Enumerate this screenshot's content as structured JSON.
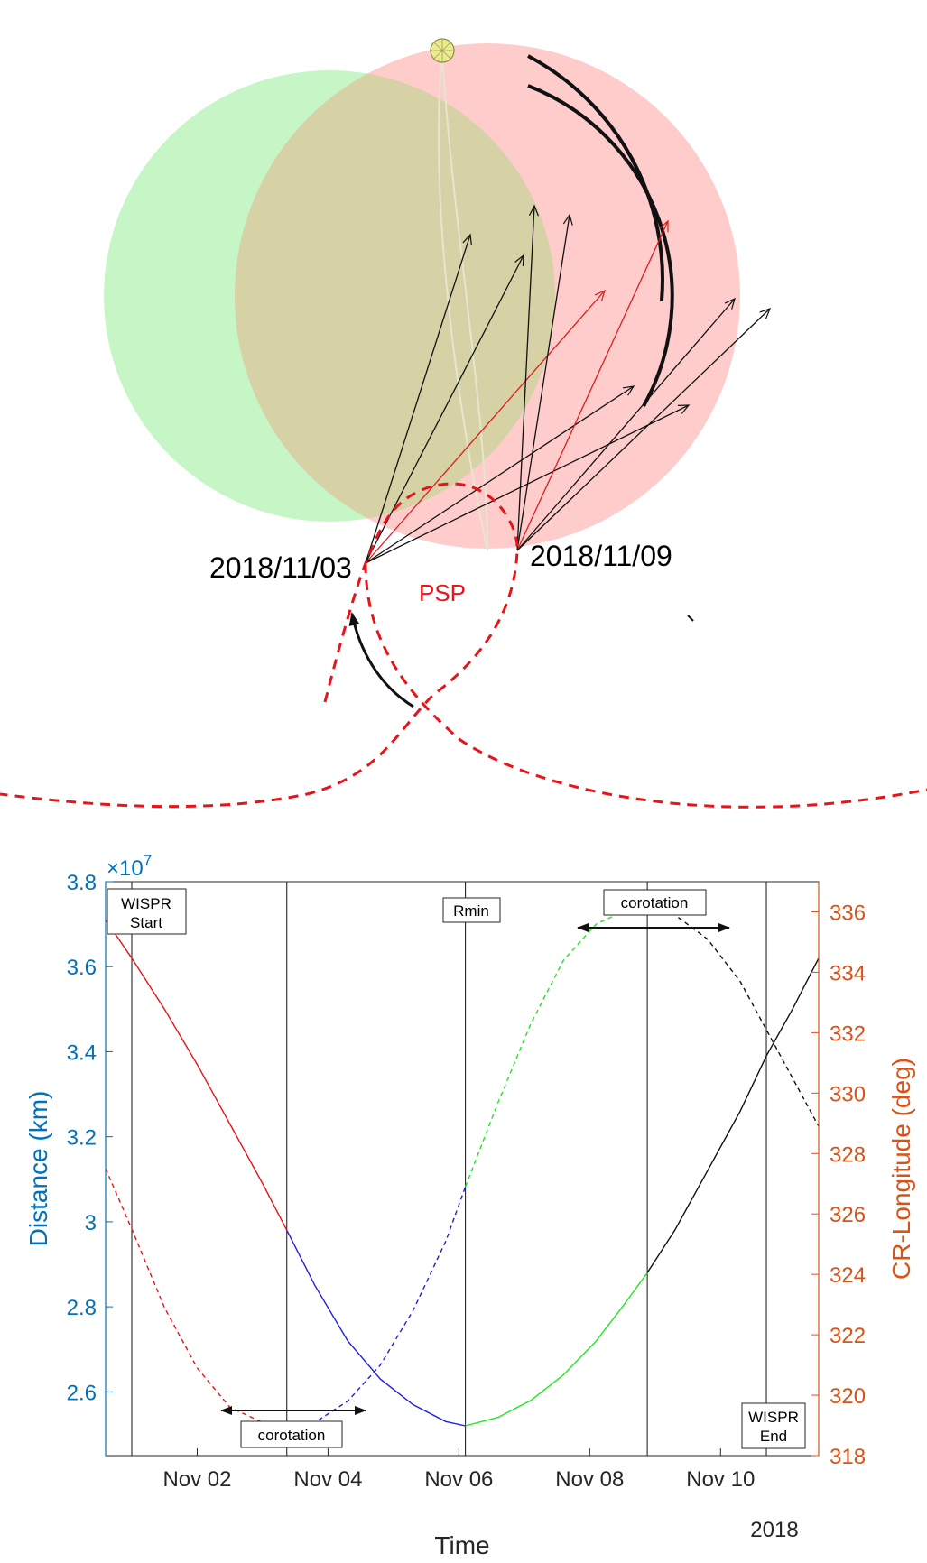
{
  "diagram": {
    "date_start": "2018/11/03",
    "date_end": "2018/11/09",
    "orbit_label": "PSP",
    "colors": {
      "green_region": "#c6f5c6",
      "red_region": "#ffcccc",
      "overlap_region": "#d6d2a6",
      "orbit": "#e8141a",
      "arrow_black": "#111111",
      "arrow_red": "#e01b1b"
    }
  },
  "chart_data": {
    "type": "line",
    "xlabel": "Time",
    "ylabel_left": "Distance (km)",
    "ylabel_right": "CR-Longitude (deg)",
    "exponent_label": "×10",
    "exponent_power": "7",
    "year_label": "2018",
    "xlim": [
      0.6,
      11.5
    ],
    "ylim_left": [
      2.45,
      3.8
    ],
    "ylim_right": [
      318,
      337
    ],
    "x_ticks": [
      {
        "value": 2.0,
        "label": "Nov 02"
      },
      {
        "value": 4.0,
        "label": "Nov 04"
      },
      {
        "value": 6.0,
        "label": "Nov 06"
      },
      {
        "value": 8.0,
        "label": "Nov 08"
      },
      {
        "value": 10.0,
        "label": "Nov 10"
      }
    ],
    "y_left_ticks": [
      {
        "value": 2.6,
        "label": "2.6"
      },
      {
        "value": 2.8,
        "label": "2.8"
      },
      {
        "value": 3.0,
        "label": "3"
      },
      {
        "value": 3.2,
        "label": "3.2"
      },
      {
        "value": 3.4,
        "label": "3.4"
      },
      {
        "value": 3.6,
        "label": "3.6"
      },
      {
        "value": 3.8,
        "label": "3.8"
      }
    ],
    "y_right_ticks": [
      {
        "value": 318,
        "label": "318"
      },
      {
        "value": 320,
        "label": "320"
      },
      {
        "value": 322,
        "label": "322"
      },
      {
        "value": 324,
        "label": "324"
      },
      {
        "value": 326,
        "label": "326"
      },
      {
        "value": 328,
        "label": "328"
      },
      {
        "value": 330,
        "label": "330"
      },
      {
        "value": 332,
        "label": "332"
      },
      {
        "value": 334,
        "label": "334"
      },
      {
        "value": 336,
        "label": "336"
      }
    ],
    "vertical_lines": [
      1.0,
      3.37,
      6.1,
      8.88,
      10.7
    ],
    "distance_series": [
      {
        "x": [
          0.6,
          1.0,
          1.5,
          2.0,
          2.5,
          3.0,
          3.37
        ],
        "y": [
          3.71,
          3.62,
          3.5,
          3.37,
          3.23,
          3.09,
          2.98
        ],
        "color": "#e8141a",
        "style": "solid"
      },
      {
        "x": [
          3.37,
          3.8,
          4.3,
          4.8,
          5.3,
          5.8,
          6.1
        ],
        "y": [
          2.98,
          2.85,
          2.72,
          2.63,
          2.57,
          2.53,
          2.52
        ],
        "color": "#1f1fe0",
        "style": "solid"
      },
      {
        "x": [
          6.1,
          6.6,
          7.1,
          7.6,
          8.1,
          8.5,
          8.88
        ],
        "y": [
          2.52,
          2.54,
          2.58,
          2.64,
          2.72,
          2.8,
          2.88
        ],
        "color": "#1ee81e",
        "style": "solid"
      },
      {
        "x": [
          8.88,
          9.3,
          9.8,
          10.3,
          10.7,
          11.1,
          11.5
        ],
        "y": [
          2.88,
          2.98,
          3.12,
          3.26,
          3.39,
          3.5,
          3.62
        ],
        "color": "#111111",
        "style": "solid"
      }
    ],
    "longitude_series": [
      {
        "x": [
          0.6,
          1.0,
          1.5,
          2.0,
          2.5,
          3.0,
          3.37
        ],
        "y": [
          327.5,
          325.5,
          322.9,
          320.9,
          319.6,
          319.1,
          319.0
        ],
        "color": "#e8141a",
        "style": "dashed"
      },
      {
        "x": [
          3.37,
          3.8,
          4.3,
          4.8,
          5.3,
          5.8,
          6.1
        ],
        "y": [
          319.0,
          319.1,
          319.8,
          321.0,
          322.8,
          325.1,
          326.9
        ],
        "color": "#1f1fe0",
        "style": "dashed"
      },
      {
        "x": [
          6.1,
          6.6,
          7.1,
          7.6,
          8.1,
          8.5,
          8.88
        ],
        "y": [
          326.9,
          329.7,
          332.3,
          334.4,
          335.6,
          336.0,
          336.1
        ],
        "color": "#1ee81e",
        "style": "dashed"
      },
      {
        "x": [
          8.88,
          9.3,
          9.8,
          10.3,
          10.7,
          11.1,
          11.5
        ],
        "y": [
          336.1,
          335.9,
          335.1,
          333.7,
          332.1,
          330.5,
          328.9
        ],
        "color": "#111111",
        "style": "dashed"
      }
    ],
    "annotations": {
      "wispr_start": [
        "WISPR",
        "Start"
      ],
      "rmin": "Rmin",
      "corotation_top": "corotation",
      "corotation_bottom": "corotation",
      "wispr_end": [
        "WISPR",
        "End"
      ]
    },
    "colors": {
      "left_axis": "#0072bd",
      "right_axis": "#d95319"
    }
  }
}
